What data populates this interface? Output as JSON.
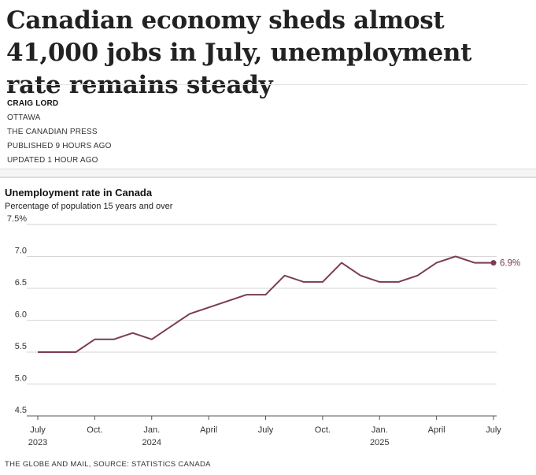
{
  "article": {
    "headline": "Canadian economy sheds almost 41,000 jobs in July, unemployment rate remains steady",
    "author": "CRAIG LORD",
    "location": "OTTAWA",
    "agency": "THE CANADIAN PRESS",
    "published": "PUBLISHED 9 HOURS AGO",
    "updated": "UPDATED 1 HOUR AGO"
  },
  "chart_data": {
    "type": "line",
    "title": "Unemployment rate in Canada",
    "subtitle": "Percentage of population 15 years and over",
    "ylim": [
      4.5,
      7.5
    ],
    "yticks": [
      "7.5%",
      "7.0",
      "6.5",
      "6.0",
      "5.5",
      "5.0",
      "4.5"
    ],
    "x": [
      "2023-07",
      "2023-08",
      "2023-09",
      "2023-10",
      "2023-11",
      "2023-12",
      "2024-01",
      "2024-02",
      "2024-03",
      "2024-04",
      "2024-05",
      "2024-06",
      "2024-07",
      "2024-08",
      "2024-09",
      "2024-10",
      "2024-11",
      "2024-12",
      "2025-01",
      "2025-02",
      "2025-03",
      "2025-04",
      "2025-05",
      "2025-06",
      "2025-07"
    ],
    "values": [
      5.5,
      5.5,
      5.5,
      5.7,
      5.7,
      5.8,
      5.7,
      5.9,
      6.1,
      6.2,
      6.3,
      6.4,
      6.4,
      6.7,
      6.6,
      6.6,
      6.9,
      6.7,
      6.6,
      6.6,
      6.7,
      6.9,
      7.0,
      6.9,
      6.9
    ],
    "xticks": [
      {
        "month": "2023-07",
        "label": "July",
        "sublabel": "2023"
      },
      {
        "month": "2023-10",
        "label": "Oct.",
        "sublabel": ""
      },
      {
        "month": "2024-01",
        "label": "Jan.",
        "sublabel": "2024"
      },
      {
        "month": "2024-04",
        "label": "April",
        "sublabel": ""
      },
      {
        "month": "2024-07",
        "label": "July",
        "sublabel": ""
      },
      {
        "month": "2024-10",
        "label": "Oct.",
        "sublabel": ""
      },
      {
        "month": "2025-01",
        "label": "Jan.",
        "sublabel": "2025"
      },
      {
        "month": "2025-04",
        "label": "April",
        "sublabel": ""
      },
      {
        "month": "2025-07",
        "label": "July",
        "sublabel": ""
      }
    ],
    "end_label": "6.9%",
    "line_color": "#7b3b56",
    "grid": true
  },
  "source": "THE GLOBE AND MAIL, SOURCE: STATISTICS CANADA"
}
